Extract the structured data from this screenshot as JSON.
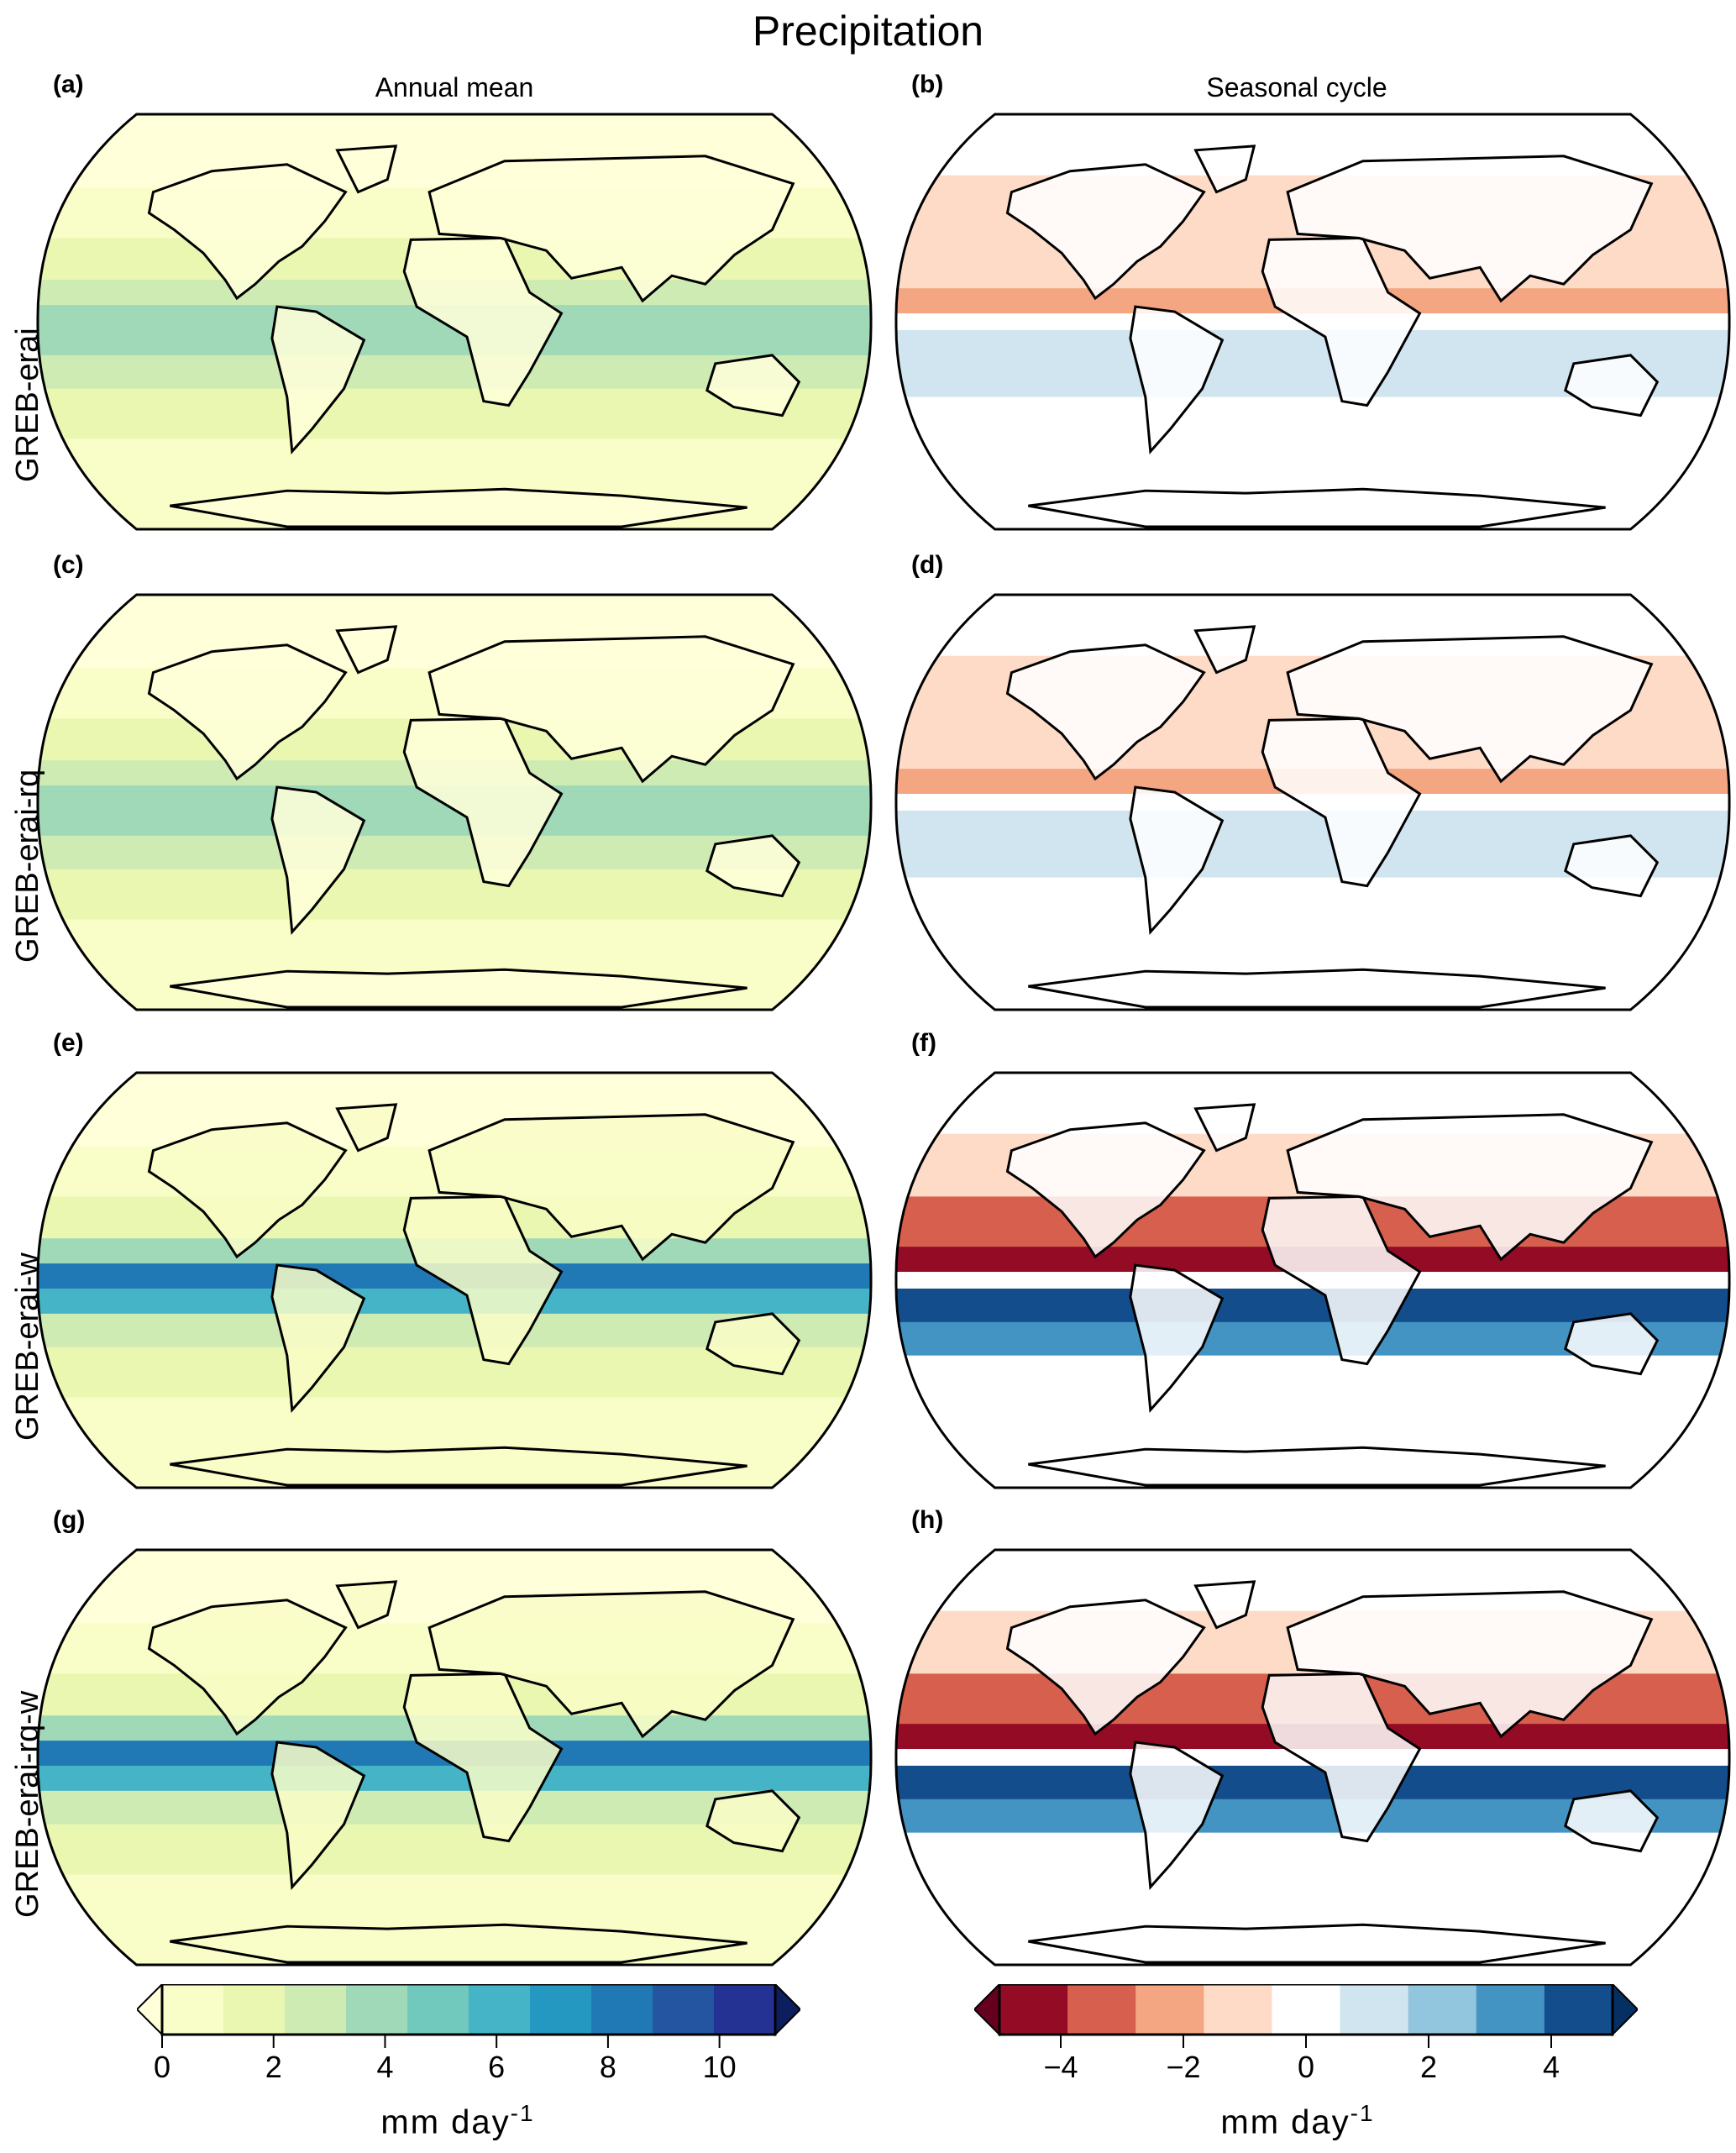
{
  "title": "Precipitation",
  "columns": [
    "Annual mean",
    "Seasonal cycle"
  ],
  "rows": [
    "GREB-erai",
    "GREB-erai-rq",
    "GREB-erai-w",
    "GREB-erai-rq-w"
  ],
  "panel_labels": [
    "(a)",
    "(b)",
    "(c)",
    "(d)",
    "(e)",
    "(f)",
    "(g)",
    "(h)"
  ],
  "colorbars": [
    {
      "ticks": [
        "0",
        "2",
        "4",
        "6",
        "8",
        "10"
      ],
      "unit": "mm day",
      "unit_exp": "-1",
      "levels": [
        0,
        1,
        2,
        3,
        4,
        5,
        6,
        7,
        8,
        9,
        10,
        11
      ],
      "colors": [
        "#ffffd9",
        "#f9fdc7",
        "#e9f7b1",
        "#cdebb3",
        "#9fd9b8",
        "#71c8bd",
        "#44b4c6",
        "#2498c1",
        "#2079b4",
        "#2355a1",
        "#243393",
        "#0c1e5e"
      ],
      "extend": "both"
    },
    {
      "ticks": [
        "−4",
        "−2",
        "0",
        "2",
        "4"
      ],
      "unit": "mm day",
      "unit_exp": "-1",
      "levels": [
        -5,
        -4,
        -3,
        -2,
        -1,
        1,
        2,
        3,
        4,
        5
      ],
      "colors": [
        "#67001f",
        "#930b25",
        "#d6604d",
        "#f4a582",
        "#fddbc7",
        "#ffffff",
        "#d1e5f0",
        "#92c5de",
        "#4393c3",
        "#144d8c",
        "#053061"
      ],
      "extend": "both"
    }
  ],
  "colors": {
    "ocean_outline": "#000000",
    "land_outline": "#000000"
  }
}
